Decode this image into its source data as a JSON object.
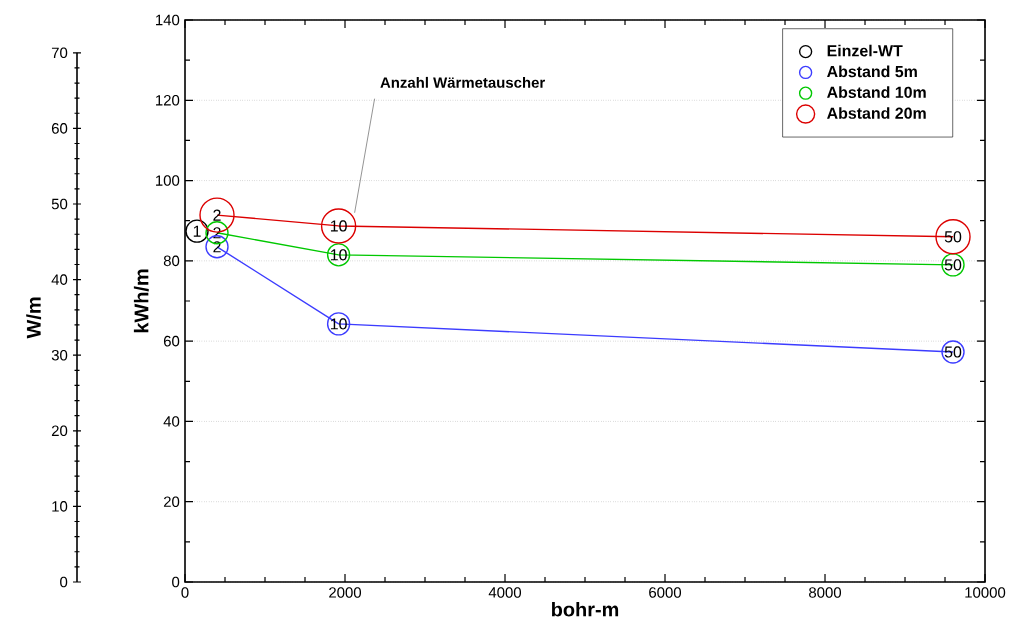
{
  "chart_data": {
    "type": "line",
    "xlabel": "bohr-m",
    "ylabel": "kWh/m",
    "y2label": "W/m",
    "xlim": [
      0,
      10000
    ],
    "xticks": [
      0,
      2000,
      4000,
      6000,
      8000,
      10000
    ],
    "ylim": [
      0,
      140
    ],
    "yticks": [
      0,
      20,
      40,
      60,
      80,
      100,
      120,
      140
    ],
    "y2lim": [
      0,
      70
    ],
    "y2ticks": [
      0,
      10,
      20,
      30,
      40,
      50,
      60,
      70
    ],
    "grid": "y",
    "legend": "top right",
    "marker": "circle",
    "series": [
      {
        "name": "Einzel-WT",
        "color": "#000000",
        "x": [
          150
        ],
        "values": [
          87.4
        ]
      },
      {
        "name": "Abstand 5m",
        "color": "#3c3cff",
        "x": [
          400,
          1920,
          9600
        ],
        "values": [
          83.5,
          64.3,
          57.3
        ]
      },
      {
        "name": "Abstand 10m",
        "color": "#00c800",
        "x": [
          400,
          1920,
          9600
        ],
        "values": [
          87,
          81.5,
          79
        ]
      },
      {
        "name": "Abstand 20m",
        "color": "#dc0000",
        "x": [
          400,
          1920,
          9600
        ],
        "values": [
          91.4,
          88.7,
          86
        ]
      }
    ],
    "annotations": [
      "Anzahl Wärmetauscher",
      {
        "text": "1",
        "x": 150,
        "y": 87.4
      },
      {
        "text": "2",
        "x": 400,
        "y": 83.5
      },
      {
        "text": "2",
        "x": 400,
        "y": 87
      },
      {
        "text": "2",
        "x": 400,
        "y": 91.4
      },
      {
        "text": "10",
        "x": 1920,
        "y": 64.3
      },
      {
        "text": "10",
        "x": 1920,
        "y": 81.5
      },
      {
        "text": "10",
        "x": 1920,
        "y": 88.7
      },
      {
        "text": "50",
        "x": 9600,
        "y": 57.3
      },
      {
        "text": "50",
        "x": 9600,
        "y": 79
      },
      {
        "text": "50",
        "x": 9600,
        "y": 86
      }
    ]
  }
}
